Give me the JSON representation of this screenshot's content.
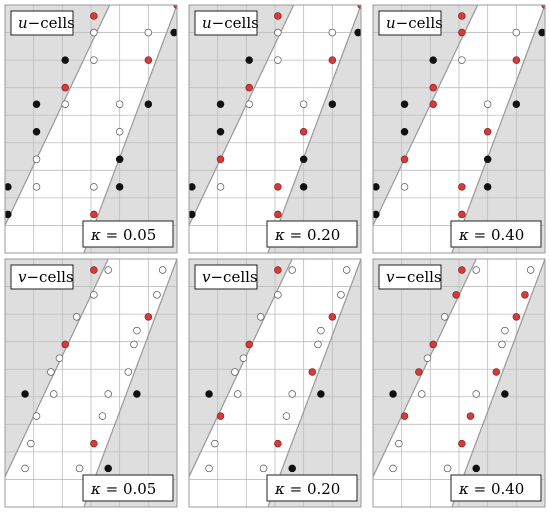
{
  "figure": {
    "colors": {
      "shade": "#dedede",
      "grid": "#bdbdbd",
      "line": "#999999",
      "red": "#d63a3a",
      "black": "#111111",
      "hollow": "#ffffff",
      "frame": "#222222"
    },
    "grid": {
      "cols": 6,
      "rows": 9
    },
    "panels": [
      {
        "label_var": "u",
        "label_rest": "−cells",
        "kappa_sym": "κ",
        "kappa_text": " = 0.05",
        "left_line": [
          [
            0.0,
            8.0
          ],
          [
            3.65,
            0.0
          ]
        ],
        "right_line": [
          [
            2.75,
            9.0
          ],
          [
            6.0,
            0.0
          ]
        ],
        "dots": [
          {
            "c": 3.1,
            "r": 0.4,
            "t": "red"
          },
          {
            "c": 6.0,
            "r": 0.0,
            "t": "red"
          },
          {
            "c": 3.1,
            "r": 1.0,
            "t": "hollow"
          },
          {
            "c": 5.0,
            "r": 1.0,
            "t": "hollow"
          },
          {
            "c": 5.9,
            "r": 1.0,
            "t": "black"
          },
          {
            "c": 2.1,
            "r": 2.0,
            "t": "black"
          },
          {
            "c": 3.1,
            "r": 2.0,
            "t": "hollow"
          },
          {
            "c": 5.0,
            "r": 2.0,
            "t": "red"
          },
          {
            "c": 2.1,
            "r": 3.0,
            "t": "red"
          },
          {
            "c": 1.1,
            "r": 3.6,
            "t": "black"
          },
          {
            "c": 2.1,
            "r": 3.6,
            "t": "hollow"
          },
          {
            "c": 4.0,
            "r": 3.6,
            "t": "hollow"
          },
          {
            "c": 5.0,
            "r": 3.6,
            "t": "black"
          },
          {
            "c": 1.1,
            "r": 4.6,
            "t": "black"
          },
          {
            "c": 4.0,
            "r": 4.6,
            "t": "hollow"
          },
          {
            "c": 1.1,
            "r": 5.6,
            "t": "hollow"
          },
          {
            "c": 4.0,
            "r": 5.6,
            "t": "black"
          },
          {
            "c": 0.1,
            "r": 6.6,
            "t": "black"
          },
          {
            "c": 1.1,
            "r": 6.6,
            "t": "hollow"
          },
          {
            "c": 3.1,
            "r": 6.6,
            "t": "hollow"
          },
          {
            "c": 4.0,
            "r": 6.6,
            "t": "black"
          },
          {
            "c": 0.1,
            "r": 7.6,
            "t": "black"
          },
          {
            "c": 3.1,
            "r": 7.6,
            "t": "red"
          }
        ]
      },
      {
        "label_var": "u",
        "label_rest": "−cells",
        "kappa_sym": "κ",
        "kappa_text": " = 0.20",
        "left_line": [
          [
            0.0,
            8.0
          ],
          [
            3.65,
            0.0
          ]
        ],
        "right_line": [
          [
            2.75,
            9.0
          ],
          [
            6.0,
            0.0
          ]
        ],
        "dots": [
          {
            "c": 3.1,
            "r": 0.4,
            "t": "red"
          },
          {
            "c": 6.0,
            "r": 0.0,
            "t": "red"
          },
          {
            "c": 3.1,
            "r": 1.0,
            "t": "hollow"
          },
          {
            "c": 5.0,
            "r": 1.0,
            "t": "hollow"
          },
          {
            "c": 5.9,
            "r": 1.0,
            "t": "black"
          },
          {
            "c": 2.1,
            "r": 2.0,
            "t": "black"
          },
          {
            "c": 3.1,
            "r": 2.0,
            "t": "hollow"
          },
          {
            "c": 5.0,
            "r": 2.0,
            "t": "red"
          },
          {
            "c": 2.1,
            "r": 3.0,
            "t": "red"
          },
          {
            "c": 1.1,
            "r": 3.6,
            "t": "black"
          },
          {
            "c": 2.1,
            "r": 3.6,
            "t": "hollow"
          },
          {
            "c": 4.0,
            "r": 3.6,
            "t": "hollow"
          },
          {
            "c": 5.0,
            "r": 3.6,
            "t": "black"
          },
          {
            "c": 1.1,
            "r": 4.6,
            "t": "black"
          },
          {
            "c": 4.0,
            "r": 4.6,
            "t": "red"
          },
          {
            "c": 1.1,
            "r": 5.6,
            "t": "red"
          },
          {
            "c": 4.0,
            "r": 5.6,
            "t": "black"
          },
          {
            "c": 0.1,
            "r": 6.6,
            "t": "black"
          },
          {
            "c": 1.1,
            "r": 6.6,
            "t": "hollow"
          },
          {
            "c": 3.1,
            "r": 6.6,
            "t": "red"
          },
          {
            "c": 4.0,
            "r": 6.6,
            "t": "black"
          },
          {
            "c": 0.1,
            "r": 7.6,
            "t": "black"
          },
          {
            "c": 3.1,
            "r": 7.6,
            "t": "red"
          }
        ]
      },
      {
        "label_var": "u",
        "label_rest": "−cells",
        "kappa_sym": "κ",
        "kappa_text": " = 0.40",
        "left_line": [
          [
            0.0,
            8.0
          ],
          [
            3.65,
            0.0
          ]
        ],
        "right_line": [
          [
            2.75,
            9.0
          ],
          [
            6.0,
            0.0
          ]
        ],
        "dots": [
          {
            "c": 3.1,
            "r": 0.4,
            "t": "red"
          },
          {
            "c": 6.0,
            "r": 0.0,
            "t": "red"
          },
          {
            "c": 3.1,
            "r": 1.0,
            "t": "red"
          },
          {
            "c": 5.0,
            "r": 1.0,
            "t": "hollow"
          },
          {
            "c": 5.9,
            "r": 1.0,
            "t": "black"
          },
          {
            "c": 2.1,
            "r": 2.0,
            "t": "black"
          },
          {
            "c": 3.1,
            "r": 2.0,
            "t": "hollow"
          },
          {
            "c": 5.0,
            "r": 2.0,
            "t": "red"
          },
          {
            "c": 2.1,
            "r": 3.0,
            "t": "red"
          },
          {
            "c": 1.1,
            "r": 3.6,
            "t": "black"
          },
          {
            "c": 2.1,
            "r": 3.6,
            "t": "red"
          },
          {
            "c": 4.0,
            "r": 3.6,
            "t": "hollow"
          },
          {
            "c": 5.0,
            "r": 3.6,
            "t": "black"
          },
          {
            "c": 1.1,
            "r": 4.6,
            "t": "black"
          },
          {
            "c": 4.0,
            "r": 4.6,
            "t": "red"
          },
          {
            "c": 1.1,
            "r": 5.6,
            "t": "red"
          },
          {
            "c": 4.0,
            "r": 5.6,
            "t": "black"
          },
          {
            "c": 0.1,
            "r": 6.6,
            "t": "black"
          },
          {
            "c": 1.1,
            "r": 6.6,
            "t": "hollow"
          },
          {
            "c": 3.1,
            "r": 6.6,
            "t": "red"
          },
          {
            "c": 4.0,
            "r": 6.6,
            "t": "black"
          },
          {
            "c": 0.1,
            "r": 7.6,
            "t": "black"
          },
          {
            "c": 3.1,
            "r": 7.6,
            "t": "red"
          }
        ]
      },
      {
        "label_var": "v",
        "label_rest": "−cells",
        "kappa_sym": "κ",
        "kappa_text": " = 0.05",
        "left_line": [
          [
            0.0,
            7.9
          ],
          [
            3.6,
            0.0
          ]
        ],
        "right_line": [
          [
            2.75,
            9.0
          ],
          [
            6.0,
            0.0
          ]
        ],
        "dots": [
          {
            "c": 3.1,
            "r": 0.4,
            "t": "red"
          },
          {
            "c": 3.6,
            "r": 0.4,
            "t": "hollow"
          },
          {
            "c": 5.5,
            "r": 0.4,
            "t": "hollow"
          },
          {
            "c": 3.1,
            "r": 1.3,
            "t": "hollow"
          },
          {
            "c": 5.3,
            "r": 1.3,
            "t": "hollow"
          },
          {
            "c": 2.5,
            "r": 2.1,
            "t": "hollow"
          },
          {
            "c": 5.0,
            "r": 2.1,
            "t": "red"
          },
          {
            "c": 4.6,
            "r": 2.6,
            "t": "hollow"
          },
          {
            "c": 2.1,
            "r": 3.1,
            "t": "red"
          },
          {
            "c": 4.5,
            "r": 3.1,
            "t": "hollow"
          },
          {
            "c": 1.9,
            "r": 3.6,
            "t": "hollow"
          },
          {
            "c": 1.6,
            "r": 4.1,
            "t": "hollow"
          },
          {
            "c": 4.3,
            "r": 4.1,
            "t": "hollow"
          },
          {
            "c": 0.7,
            "r": 4.9,
            "t": "black"
          },
          {
            "c": 1.7,
            "r": 4.9,
            "t": "hollow"
          },
          {
            "c": 3.6,
            "r": 4.9,
            "t": "hollow"
          },
          {
            "c": 4.6,
            "r": 4.9,
            "t": "black"
          },
          {
            "c": 1.1,
            "r": 5.7,
            "t": "hollow"
          },
          {
            "c": 3.4,
            "r": 5.7,
            "t": "hollow"
          },
          {
            "c": 0.9,
            "r": 6.7,
            "t": "hollow"
          },
          {
            "c": 3.1,
            "r": 6.7,
            "t": "red"
          },
          {
            "c": 0.7,
            "r": 7.6,
            "t": "hollow"
          },
          {
            "c": 2.6,
            "r": 7.6,
            "t": "hollow"
          },
          {
            "c": 3.6,
            "r": 7.6,
            "t": "black"
          }
        ]
      },
      {
        "label_var": "v",
        "label_rest": "−cells",
        "kappa_sym": "κ",
        "kappa_text": " = 0.20",
        "left_line": [
          [
            0.0,
            7.9
          ],
          [
            3.6,
            0.0
          ]
        ],
        "right_line": [
          [
            2.75,
            9.0
          ],
          [
            6.0,
            0.0
          ]
        ],
        "dots": [
          {
            "c": 3.1,
            "r": 0.4,
            "t": "red"
          },
          {
            "c": 3.6,
            "r": 0.4,
            "t": "hollow"
          },
          {
            "c": 5.5,
            "r": 0.4,
            "t": "hollow"
          },
          {
            "c": 3.1,
            "r": 1.3,
            "t": "hollow"
          },
          {
            "c": 5.3,
            "r": 1.3,
            "t": "hollow"
          },
          {
            "c": 2.5,
            "r": 2.1,
            "t": "hollow"
          },
          {
            "c": 5.0,
            "r": 2.1,
            "t": "red"
          },
          {
            "c": 4.6,
            "r": 2.6,
            "t": "hollow"
          },
          {
            "c": 2.1,
            "r": 3.1,
            "t": "red"
          },
          {
            "c": 4.5,
            "r": 3.1,
            "t": "hollow"
          },
          {
            "c": 1.9,
            "r": 3.6,
            "t": "hollow"
          },
          {
            "c": 1.6,
            "r": 4.1,
            "t": "hollow"
          },
          {
            "c": 4.3,
            "r": 4.1,
            "t": "red"
          },
          {
            "c": 0.7,
            "r": 4.9,
            "t": "black"
          },
          {
            "c": 1.7,
            "r": 4.9,
            "t": "hollow"
          },
          {
            "c": 3.6,
            "r": 4.9,
            "t": "hollow"
          },
          {
            "c": 4.6,
            "r": 4.9,
            "t": "black"
          },
          {
            "c": 1.1,
            "r": 5.7,
            "t": "red"
          },
          {
            "c": 3.4,
            "r": 5.7,
            "t": "hollow"
          },
          {
            "c": 0.9,
            "r": 6.7,
            "t": "hollow"
          },
          {
            "c": 3.1,
            "r": 6.7,
            "t": "red"
          },
          {
            "c": 0.7,
            "r": 7.6,
            "t": "hollow"
          },
          {
            "c": 2.6,
            "r": 7.6,
            "t": "hollow"
          },
          {
            "c": 3.6,
            "r": 7.6,
            "t": "black"
          }
        ]
      },
      {
        "label_var": "v",
        "label_rest": "−cells",
        "kappa_sym": "κ",
        "kappa_text": " = 0.40",
        "left_line": [
          [
            0.0,
            7.9
          ],
          [
            3.6,
            0.0
          ]
        ],
        "right_line": [
          [
            2.75,
            9.0
          ],
          [
            6.0,
            0.0
          ]
        ],
        "dots": [
          {
            "c": 3.1,
            "r": 0.4,
            "t": "red"
          },
          {
            "c": 3.6,
            "r": 0.4,
            "t": "hollow"
          },
          {
            "c": 5.5,
            "r": 0.4,
            "t": "hollow"
          },
          {
            "c": 2.9,
            "r": 1.3,
            "t": "red"
          },
          {
            "c": 5.3,
            "r": 1.3,
            "t": "red"
          },
          {
            "c": 2.5,
            "r": 2.1,
            "t": "hollow"
          },
          {
            "c": 5.0,
            "r": 2.1,
            "t": "red"
          },
          {
            "c": 4.6,
            "r": 2.6,
            "t": "hollow"
          },
          {
            "c": 2.1,
            "r": 3.1,
            "t": "red"
          },
          {
            "c": 4.5,
            "r": 3.1,
            "t": "hollow"
          },
          {
            "c": 1.9,
            "r": 3.6,
            "t": "hollow"
          },
          {
            "c": 1.6,
            "r": 4.1,
            "t": "red"
          },
          {
            "c": 4.3,
            "r": 4.1,
            "t": "red"
          },
          {
            "c": 0.7,
            "r": 4.9,
            "t": "black"
          },
          {
            "c": 1.7,
            "r": 4.9,
            "t": "hollow"
          },
          {
            "c": 3.6,
            "r": 4.9,
            "t": "hollow"
          },
          {
            "c": 4.6,
            "r": 4.9,
            "t": "black"
          },
          {
            "c": 1.1,
            "r": 5.7,
            "t": "red"
          },
          {
            "c": 3.4,
            "r": 5.7,
            "t": "red"
          },
          {
            "c": 0.9,
            "r": 6.7,
            "t": "hollow"
          },
          {
            "c": 3.1,
            "r": 6.7,
            "t": "red"
          },
          {
            "c": 0.7,
            "r": 7.6,
            "t": "hollow"
          },
          {
            "c": 2.6,
            "r": 7.6,
            "t": "hollow"
          },
          {
            "c": 3.6,
            "r": 7.6,
            "t": "black"
          }
        ]
      }
    ]
  }
}
